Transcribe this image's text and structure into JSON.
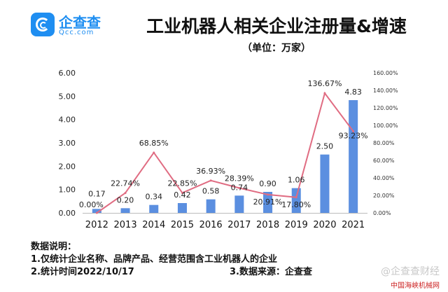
{
  "brand": {
    "name": "企查查",
    "sub": "Qcc.com"
  },
  "title": "工业机器人相关企业注册量&增速",
  "subtitle": "（单位：万家）",
  "chart_data": {
    "type": "bar",
    "categories": [
      "2012",
      "2013",
      "2014",
      "2015",
      "2016",
      "2017",
      "2018",
      "2019",
      "2020",
      "2021"
    ],
    "bar_labels": [
      "0.17",
      "0.20",
      "0.34",
      "0.42",
      "0.58",
      "0.74",
      "0.90",
      "1.06",
      "2.50",
      "4.83"
    ],
    "line_labels": [
      "0.00%",
      "22.74%",
      "68.85%",
      "22.85%",
      "36.93%",
      "28.39%",
      "20.91%",
      "17.80%",
      "136.67%",
      "93.23%"
    ],
    "series": [
      {
        "type": "bar",
        "values": [
          0.17,
          0.2,
          0.34,
          0.42,
          0.58,
          0.74,
          0.9,
          1.06,
          2.5,
          4.83
        ]
      },
      {
        "type": "line",
        "values": [
          0.0,
          22.74,
          68.85,
          22.85,
          36.93,
          28.39,
          20.91,
          17.8,
          136.67,
          93.23
        ]
      }
    ],
    "ylim_left": [
      0,
      6
    ],
    "left_ticks": [
      "0.00",
      "1.00",
      "2.00",
      "3.00",
      "4.00",
      "5.00",
      "6.00"
    ],
    "ylim_right": [
      0,
      160
    ],
    "right_ticks": [
      "0.00%",
      "20.00%",
      "40.00%",
      "60.00%",
      "80.00%",
      "100.00%",
      "120.00%",
      "140.00%",
      "160.00%"
    ],
    "bar_color": "#5b8fe0",
    "line_color": "#e06c82",
    "grid": false,
    "legend": "none"
  },
  "notes": {
    "heading": "数据说明：",
    "line1": "1.仅统计企业名称、品牌产品、经营范围含工业机器人的企业",
    "line2": "2.统计时间2022/10/17",
    "line3": "3.数据来源：企查查"
  },
  "watermark": "@企查查财经",
  "watermark2": "中国海峡机械网"
}
